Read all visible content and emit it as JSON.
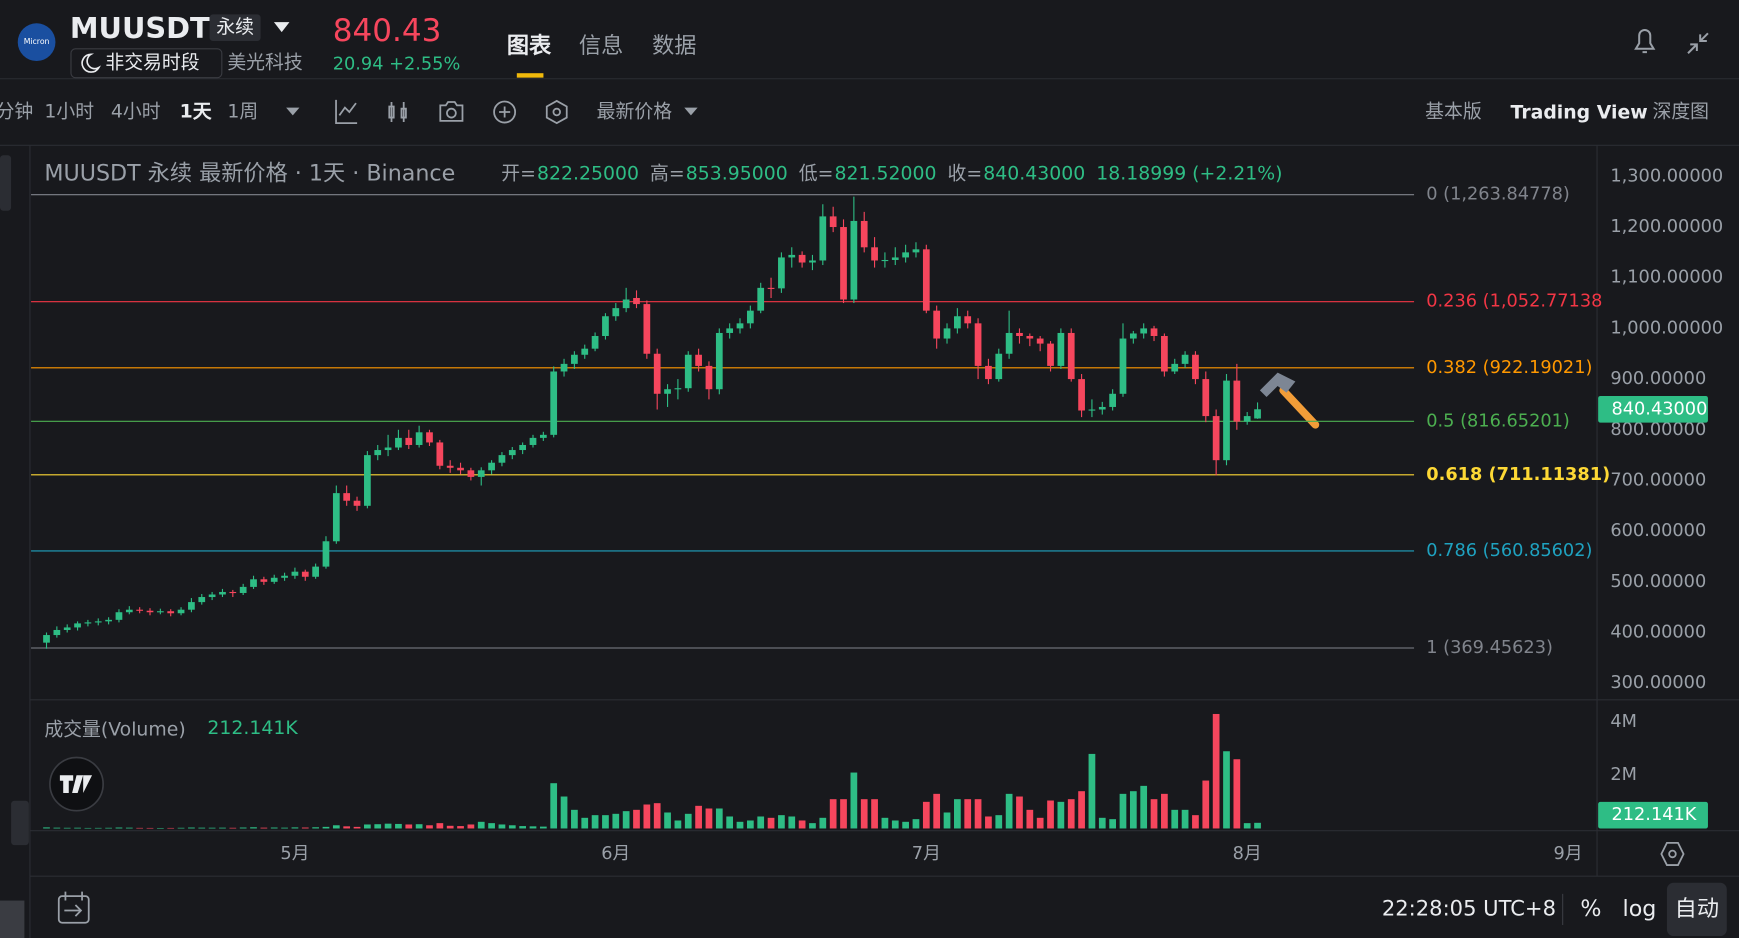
{
  "header": {
    "symbol": "MUUSDT",
    "contract_type": "永续",
    "session": "非交易时段",
    "company": "美光科技",
    "price": "840.43",
    "change": "20.94 +2.55%",
    "tabs": [
      "图表",
      "信息",
      "数据"
    ]
  },
  "toolbar": {
    "intervals": [
      "分钟",
      "1小时",
      "4小时",
      "1天",
      "1周"
    ],
    "price_source": "最新价格",
    "views": [
      "基本版",
      "Trading View",
      "深度图"
    ]
  },
  "footer": {
    "time": "22:28:05 UTC+8",
    "toggles": [
      "%",
      "log",
      "自动"
    ]
  },
  "chart_data": {
    "type": "candlestick",
    "title": "MUUSDT 永续 最新价格 · 1天 · Binance",
    "ohlc_legend": [
      {
        "label": "开=",
        "value": "822.25000"
      },
      {
        "label": "高=",
        "value": "853.95000"
      },
      {
        "label": "低=",
        "value": "821.52000"
      },
      {
        "label": "收=",
        "value": "840.43000"
      }
    ],
    "change_label": "18.18999 (+2.21%)",
    "up_color": "#2ebd85",
    "down_color": "#f6465d",
    "ylim": [
      269.4,
      1356.9
    ],
    "yticks": [
      {
        "value": 300,
        "label": "300.00000"
      },
      {
        "value": 400,
        "label": "400.00000"
      },
      {
        "value": 500,
        "label": "500.00000"
      },
      {
        "value": 600,
        "label": "600.00000"
      },
      {
        "value": 700,
        "label": "700.00000"
      },
      {
        "value": 800,
        "label": "800.00000"
      },
      {
        "value": 900,
        "label": "900.00000"
      },
      {
        "value": 1000,
        "label": "1,000.00000"
      },
      {
        "value": 1100,
        "label": "1,100.00000"
      },
      {
        "value": 1200,
        "label": "1,200.00000"
      },
      {
        "value": 1300,
        "label": "1,300.00000"
      }
    ],
    "last_price_label": "840.43000",
    "xlim": [
      -1.6,
      149.8
    ],
    "xticks": [
      {
        "value": 24,
        "label": "5月"
      },
      {
        "value": 55,
        "label": "6月"
      },
      {
        "value": 85,
        "label": "7月"
      },
      {
        "value": 116,
        "label": "8月"
      },
      {
        "value": 147,
        "label": "9月"
      }
    ],
    "grid": false,
    "fib_levels": [
      {
        "price": 1263.84778,
        "label": "0 (1,263.84778)",
        "color": "#80848c"
      },
      {
        "price": 1052.77138,
        "label": "0.236 (1,052.77138",
        "color": "#f23645"
      },
      {
        "price": 922.19021,
        "label": "0.382 (922.19021)",
        "color": "#ff9800"
      },
      {
        "price": 816.65201,
        "label": "0.5 (816.65201)",
        "color": "#4caf50"
      },
      {
        "price": 711.11381,
        "label": "0.618 (711.11381)",
        "color": "#fdd835"
      },
      {
        "price": 560.85602,
        "label": "0.786 (560.85602)",
        "color": "#1fa2c0"
      },
      {
        "price": 369.45623,
        "label": "1 (369.45623)",
        "color": "#80848c"
      }
    ],
    "volume": {
      "title": "成交量(Volume)",
      "current_label": "212.141K",
      "ylim": [
        0,
        4790000
      ],
      "yticks": [
        {
          "value": 4000000,
          "label": "4M"
        },
        {
          "value": 2000000,
          "label": "2M"
        }
      ]
    },
    "candles": [
      [
        380,
        400,
        368,
        395,
        40000
      ],
      [
        395,
        412,
        390,
        405,
        30000
      ],
      [
        405,
        416,
        400,
        410,
        25000
      ],
      [
        410,
        422,
        404,
        418,
        28000
      ],
      [
        418,
        425,
        412,
        420,
        20000
      ],
      [
        420,
        428,
        414,
        422,
        22000
      ],
      [
        422,
        430,
        416,
        425,
        25000
      ],
      [
        425,
        446,
        420,
        440,
        35000
      ],
      [
        440,
        452,
        436,
        445,
        30000
      ],
      [
        445,
        450,
        438,
        443,
        22000
      ],
      [
        443,
        448,
        434,
        440,
        20000
      ],
      [
        440,
        447,
        436,
        442,
        18000
      ],
      [
        442,
        446,
        432,
        438,
        20000
      ],
      [
        438,
        450,
        434,
        445,
        25000
      ],
      [
        445,
        468,
        440,
        460,
        35000
      ],
      [
        460,
        476,
        455,
        470,
        30000
      ],
      [
        470,
        480,
        464,
        475,
        28000
      ],
      [
        475,
        486,
        470,
        480,
        30000
      ],
      [
        480,
        484,
        470,
        478,
        25000
      ],
      [
        478,
        496,
        474,
        490,
        35000
      ],
      [
        490,
        512,
        486,
        505,
        45000
      ],
      [
        505,
        510,
        494,
        500,
        30000
      ],
      [
        500,
        514,
        496,
        508,
        35000
      ],
      [
        508,
        518,
        502,
        512,
        30000
      ],
      [
        512,
        528,
        506,
        520,
        40000
      ],
      [
        520,
        524,
        502,
        510,
        35000
      ],
      [
        510,
        536,
        506,
        530,
        45000
      ],
      [
        530,
        590,
        526,
        580,
        60000
      ],
      [
        580,
        690,
        575,
        675,
        120000
      ],
      [
        675,
        690,
        650,
        660,
        80000
      ],
      [
        660,
        668,
        640,
        650,
        60000
      ],
      [
        650,
        758,
        645,
        750,
        150000
      ],
      [
        750,
        770,
        740,
        760,
        160000
      ],
      [
        760,
        790,
        748,
        765,
        180000
      ],
      [
        765,
        800,
        760,
        784,
        170000
      ],
      [
        784,
        800,
        762,
        770,
        150000
      ],
      [
        770,
        808,
        765,
        795,
        160000
      ],
      [
        795,
        800,
        768,
        775,
        120000
      ],
      [
        775,
        780,
        722,
        729,
        200000
      ],
      [
        729,
        740,
        715,
        725,
        100000
      ],
      [
        725,
        735,
        712,
        720,
        90000
      ],
      [
        720,
        725,
        700,
        707,
        150000
      ],
      [
        707,
        726,
        690,
        720,
        250000
      ],
      [
        720,
        740,
        712,
        735,
        200000
      ],
      [
        735,
        756,
        728,
        750,
        150000
      ],
      [
        750,
        766,
        742,
        760,
        120000
      ],
      [
        760,
        775,
        752,
        770,
        90000
      ],
      [
        770,
        790,
        765,
        784,
        80000
      ],
      [
        784,
        796,
        778,
        790,
        70000
      ],
      [
        790,
        925,
        785,
        915,
        1700000
      ],
      [
        915,
        940,
        905,
        930,
        1200000
      ],
      [
        930,
        955,
        920,
        948,
        700000
      ],
      [
        948,
        968,
        940,
        960,
        400000
      ],
      [
        960,
        992,
        955,
        985,
        500000
      ],
      [
        985,
        1030,
        978,
        1024,
        500000
      ],
      [
        1024,
        1050,
        1015,
        1040,
        550000
      ],
      [
        1040,
        1080,
        1032,
        1057,
        650000
      ],
      [
        1060,
        1075,
        1040,
        1048,
        700000
      ],
      [
        1048,
        1055,
        940,
        950,
        900000
      ],
      [
        950,
        960,
        840,
        871,
        950000
      ],
      [
        871,
        890,
        845,
        880,
        600000
      ],
      [
        880,
        900,
        860,
        882,
        300000
      ],
      [
        882,
        955,
        875,
        948,
        550000
      ],
      [
        948,
        960,
        915,
        926,
        850000
      ],
      [
        926,
        935,
        860,
        880,
        750000
      ],
      [
        880,
        1000,
        870,
        991,
        750000
      ],
      [
        991,
        1010,
        980,
        1000,
        450000
      ],
      [
        1000,
        1020,
        990,
        1010,
        250000
      ],
      [
        1010,
        1045,
        1000,
        1035,
        300000
      ],
      [
        1035,
        1090,
        1030,
        1080,
        450000
      ],
      [
        1080,
        1100,
        1060,
        1079,
        400000
      ],
      [
        1079,
        1150,
        1070,
        1140,
        500000
      ],
      [
        1140,
        1160,
        1120,
        1145,
        450000
      ],
      [
        1145,
        1152,
        1120,
        1130,
        300000
      ],
      [
        1130,
        1145,
        1115,
        1134,
        200000
      ],
      [
        1134,
        1245,
        1125,
        1221,
        400000
      ],
      [
        1221,
        1240,
        1190,
        1200,
        1100000
      ],
      [
        1200,
        1215,
        1050,
        1057,
        1100000
      ],
      [
        1057,
        1260,
        1050,
        1212,
        2100000
      ],
      [
        1212,
        1230,
        1150,
        1160,
        1100000
      ],
      [
        1160,
        1180,
        1120,
        1134,
        1100000
      ],
      [
        1134,
        1150,
        1120,
        1135,
        400000
      ],
      [
        1135,
        1160,
        1125,
        1140,
        300000
      ],
      [
        1140,
        1165,
        1130,
        1150,
        250000
      ],
      [
        1150,
        1170,
        1140,
        1156,
        350000
      ],
      [
        1156,
        1165,
        1030,
        1035,
        1000000
      ],
      [
        1035,
        1045,
        960,
        980,
        1300000
      ],
      [
        980,
        1010,
        970,
        1000,
        600000
      ],
      [
        1000,
        1040,
        990,
        1024,
        1100000
      ],
      [
        1024,
        1035,
        1000,
        1010,
        1100000
      ],
      [
        1010,
        1020,
        900,
        926,
        1100000
      ],
      [
        926,
        940,
        890,
        900,
        450000
      ],
      [
        900,
        960,
        895,
        950,
        500000
      ],
      [
        950,
        1035,
        940,
        991,
        1300000
      ],
      [
        991,
        1000,
        970,
        985,
        1200000
      ],
      [
        985,
        990,
        965,
        980,
        700000
      ],
      [
        980,
        985,
        955,
        970,
        400000
      ],
      [
        970,
        975,
        915,
        926,
        1050000
      ],
      [
        926,
        1000,
        920,
        991,
        1000000
      ],
      [
        991,
        1000,
        895,
        900,
        1100000
      ],
      [
        900,
        910,
        825,
        838,
        1400000
      ],
      [
        838,
        860,
        825,
        840,
        2800000
      ],
      [
        840,
        855,
        830,
        845,
        400000
      ],
      [
        845,
        880,
        838,
        871,
        350000
      ],
      [
        871,
        1010,
        865,
        980,
        1300000
      ],
      [
        980,
        995,
        970,
        990,
        1400000
      ],
      [
        990,
        1010,
        980,
        1000,
        1600000
      ],
      [
        1000,
        1005,
        975,
        985,
        1100000
      ],
      [
        985,
        990,
        905,
        915,
        1300000
      ],
      [
        915,
        940,
        910,
        930,
        700000
      ],
      [
        930,
        955,
        922,
        948,
        700000
      ],
      [
        948,
        955,
        890,
        900,
        500000
      ],
      [
        900,
        915,
        815,
        827,
        1800000
      ],
      [
        827,
        840,
        710,
        740,
        4300000
      ],
      [
        740,
        910,
        730,
        897,
        2900000
      ],
      [
        897,
        930,
        800,
        816,
        2600000
      ],
      [
        816,
        835,
        810,
        827,
        200000
      ],
      [
        822.25,
        853.95,
        821.52,
        840.43,
        212141
      ]
    ]
  }
}
